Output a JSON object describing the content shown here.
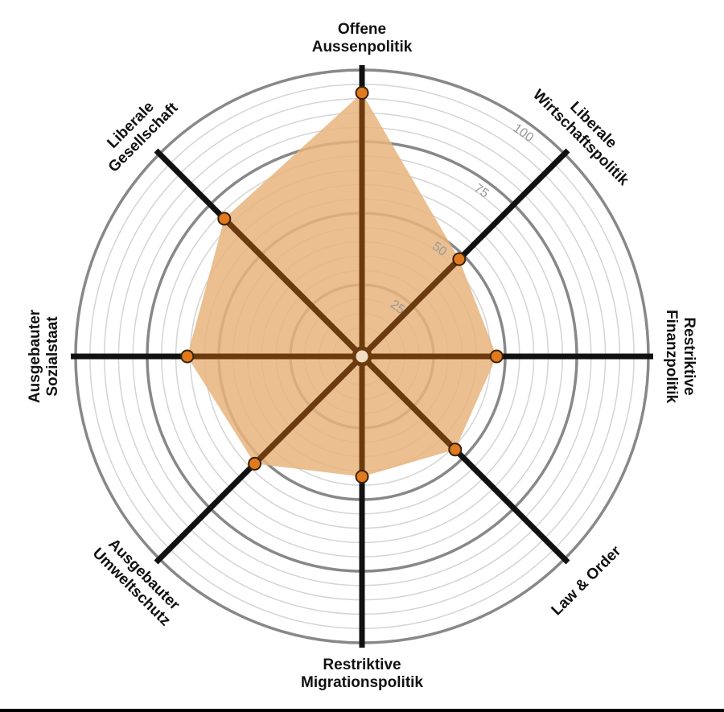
{
  "chart_data": {
    "type": "radar",
    "axes": [
      "Offene Aussenpolitik",
      "Liberale Wirtschaftspolitik",
      "Restriktive Finanzpolitik",
      "Law & Order",
      "Restriktive Migrationspolitik",
      "Ausgebauter Umweltschutz",
      "Ausgebauter Sozialstaat",
      "Liberale Gesellschaft"
    ],
    "label_lines": [
      [
        "Offene",
        "Aussenpolitik"
      ],
      [
        "Liberale",
        "Wirtschaftspolitik"
      ],
      [
        "Restriktive",
        "Finanzpolitik"
      ],
      [
        "Law & Order"
      ],
      [
        "Restriktive",
        "Migrationspolitik"
      ],
      [
        "Ausgebauter",
        "Umweltschutz"
      ],
      [
        "Ausgebauter",
        "Sozialstaat"
      ],
      [
        "Liberale",
        "Gesellschaft"
      ]
    ],
    "values": [
      92,
      48,
      47,
      46,
      42,
      53,
      61,
      68
    ],
    "range": [
      0,
      100
    ],
    "ticks": [
      25,
      50,
      75,
      100
    ],
    "minor_step": 5,
    "colors": {
      "fill": "#e8b47c",
      "marker": "#e07a1f",
      "spoke_inner": "#6b3a0e",
      "spoke_outer": "#111111",
      "ring_major": "#888888",
      "ring_minor": "#d4d4d4",
      "tick_text": "#999999"
    }
  }
}
